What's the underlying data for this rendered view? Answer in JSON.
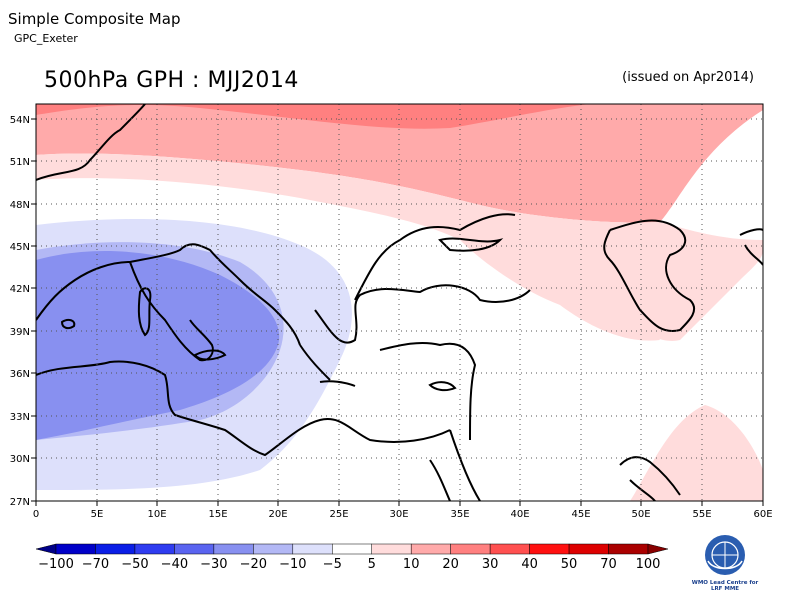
{
  "header": {
    "app_title": "Simple Composite Map",
    "subtitle": "GPC_Exeter",
    "map_title": "500hPa GPH : MJJ2014",
    "issued": "(issued on Apr2014)"
  },
  "map": {
    "lon_range": [
      0,
      60
    ],
    "lat_range": [
      27,
      55
    ],
    "lon_labels": [
      "0",
      "5E",
      "10E",
      "15E",
      "20E",
      "25E",
      "30E",
      "35E",
      "40E",
      "45E",
      "50E",
      "55E",
      "60E"
    ],
    "lat_labels": [
      "54N",
      "51N",
      "48N",
      "45N",
      "42N",
      "39N",
      "36N",
      "33N",
      "30N",
      "27N"
    ],
    "grid": "dotted"
  },
  "legend": {
    "labels": [
      "−100",
      "−70",
      "−50",
      "−40",
      "−30",
      "−20",
      "−10",
      "−5",
      "5",
      "10",
      "20",
      "30",
      "40",
      "50",
      "70",
      "100"
    ],
    "colors": [
      "#000088",
      "#0000c8",
      "#0a1ee6",
      "#2f3cf0",
      "#5a64f0",
      "#8890f0",
      "#b3b8f5",
      "#dde0fb",
      "#ffffff",
      "#ffdcdc",
      "#ffaaaa",
      "#ff8080",
      "#ff5050",
      "#ff1010",
      "#dd0000",
      "#aa0000",
      "#880000"
    ]
  },
  "logo": {
    "text_line1": "WMO Lead Centre for",
    "text_line2": "LRF MME"
  }
}
